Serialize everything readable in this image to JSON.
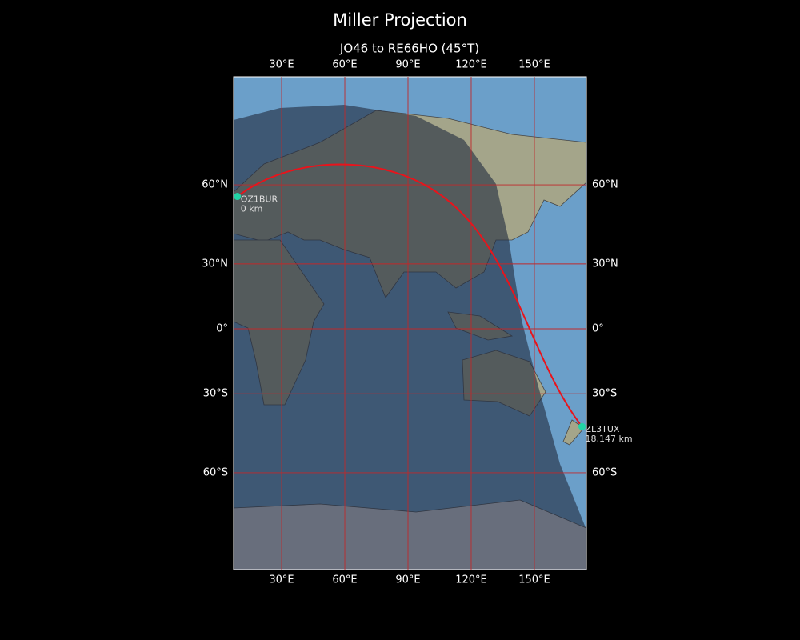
{
  "chart_data": {
    "type": "map",
    "title": "Miller Projection",
    "subtitle": "JO46 to RE66HO (45°T)",
    "projection": "miller",
    "xlim": [
      7.2,
      174.7
    ],
    "ylim": [
      -84,
      86
    ],
    "xticks": [
      {
        "value": 30,
        "label": "30°E"
      },
      {
        "value": 60,
        "label": "60°E"
      },
      {
        "value": 90,
        "label": "90°E"
      },
      {
        "value": 120,
        "label": "120°E"
      },
      {
        "value": 150,
        "label": "150°E"
      }
    ],
    "yticks": [
      {
        "value": 60,
        "label": "60°N"
      },
      {
        "value": 30,
        "label": "30°N"
      },
      {
        "value": 0,
        "label": "0°"
      },
      {
        "value": -30,
        "label": "30°S"
      },
      {
        "value": -60,
        "label": "60°S"
      }
    ],
    "grid": true,
    "grid_color": "#c0282a",
    "path_color": "#e8141c",
    "station_color": "#22d3a5",
    "stations": {
      "names": [
        "OZ1BUR",
        "ZL3TUX"
      ],
      "lon": [
        9,
        172.6
      ],
      "lat": [
        56.2,
        -43.6
      ],
      "values": [
        0,
        18147
      ],
      "value_labels": [
        "0 km",
        "18,147 km"
      ]
    }
  }
}
